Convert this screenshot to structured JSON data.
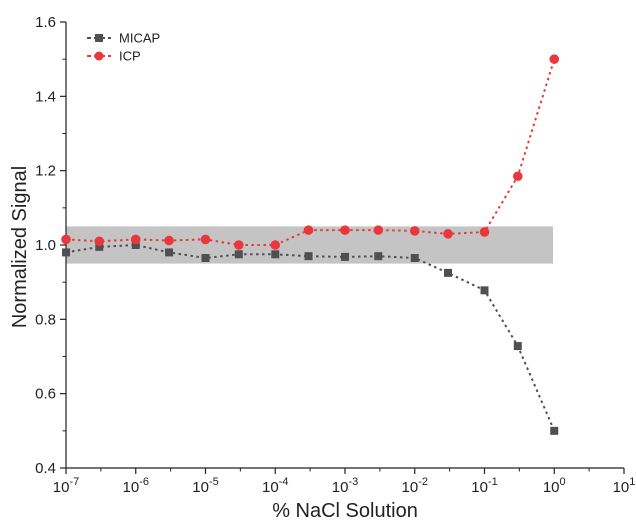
{
  "chart_data": {
    "type": "scatter",
    "xscale": "log",
    "xlabel": "% NaCl Solution",
    "ylabel": "Normalized Signal",
    "xlim": [
      1e-07,
      10
    ],
    "ylim": [
      0.4,
      1.6
    ],
    "x_ticks": [
      {
        "base": "10",
        "exp": "-7"
      },
      {
        "base": "10",
        "exp": "-6"
      },
      {
        "base": "10",
        "exp": "-5"
      },
      {
        "base": "10",
        "exp": "-4"
      },
      {
        "base": "10",
        "exp": "-3"
      },
      {
        "base": "10",
        "exp": "-2"
      },
      {
        "base": "10",
        "exp": "-1"
      },
      {
        "base": "10",
        "exp": "0"
      },
      {
        "base": "10",
        "exp": "1"
      }
    ],
    "y_ticks": [
      "0.4",
      "0.6",
      "0.8",
      "1.0",
      "1.2",
      "1.4",
      "1.6"
    ],
    "band": {
      "ymin": 0.95,
      "ymax": 1.05,
      "color": "#c4c4c4"
    },
    "grid": false,
    "legend_position": "top-left",
    "series": [
      {
        "name": "MICAP",
        "color": "#505050",
        "marker": "square",
        "x": [
          1e-07,
          3e-07,
          1e-06,
          3e-06,
          1e-05,
          3e-05,
          0.0001,
          0.0003,
          0.001,
          0.003,
          0.01,
          0.03,
          0.1,
          0.3,
          1
        ],
        "y": [
          0.98,
          0.995,
          1.0,
          0.98,
          0.965,
          0.975,
          0.975,
          0.97,
          0.968,
          0.97,
          0.965,
          0.925,
          0.878,
          0.728,
          0.5
        ]
      },
      {
        "name": "ICP",
        "color": "#e8383d",
        "marker": "circle",
        "x": [
          1e-07,
          3e-07,
          1e-06,
          3e-06,
          1e-05,
          3e-05,
          0.0001,
          0.0003,
          0.001,
          0.003,
          0.01,
          0.03,
          0.1,
          0.3,
          1
        ],
        "y": [
          1.015,
          1.01,
          1.015,
          1.012,
          1.015,
          1.0,
          1.0,
          1.04,
          1.04,
          1.04,
          1.038,
          1.03,
          1.035,
          1.185,
          1.5
        ]
      }
    ]
  }
}
